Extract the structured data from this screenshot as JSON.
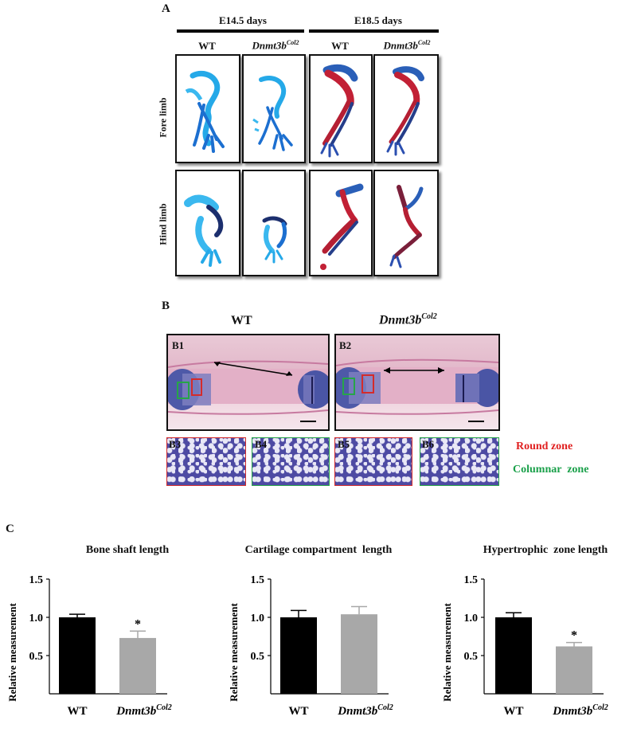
{
  "panel_a": {
    "label": "A",
    "groups": [
      {
        "title": "E14.5 days"
      },
      {
        "title": "E18.5 days"
      }
    ],
    "columns": [
      {
        "base": "WT",
        "sup": ""
      },
      {
        "base": "Dnmt3b",
        "sup": "Col2"
      },
      {
        "base": "WT",
        "sup": ""
      },
      {
        "base": "Dnmt3b",
        "sup": "Col2"
      }
    ],
    "rows": [
      "Fore limb",
      "Hind limb"
    ]
  },
  "panel_b": {
    "label": "B",
    "wt_title": "WT",
    "mut_title": {
      "base": "Dnmt3b",
      "sup": "Col2"
    },
    "main_labels": [
      "B1",
      "B2"
    ],
    "thumb_labels": [
      "B3",
      "B4",
      "B5",
      "B6"
    ],
    "legend": [
      {
        "text": "Round zone",
        "color": "#e02020"
      },
      {
        "text": "Columnar  zone",
        "color": "#1aa04a"
      }
    ],
    "colors": {
      "round": "#d42b2b",
      "columnar": "#27a548"
    }
  },
  "panel_c": {
    "label": "C"
  },
  "chart_data": [
    {
      "type": "bar",
      "title": "Bone shaft length",
      "ylabel": "Relative measurement",
      "ylim": [
        0,
        1.5
      ],
      "yticks": [
        "0.5",
        "1.0",
        "1.5"
      ],
      "categories": [
        "WT",
        "Dnmt3b^Col2"
      ],
      "category_parts": [
        {
          "base": "WT",
          "sup": ""
        },
        {
          "base": "Dnmt3b",
          "sup": "Col2"
        }
      ],
      "values": [
        1.0,
        0.73
      ],
      "errors": [
        0.04,
        0.09
      ],
      "significance": [
        "",
        "*"
      ],
      "colors": [
        "#000000",
        "#a8a8a8"
      ]
    },
    {
      "type": "bar",
      "title": "Cartilage compartment  length",
      "ylabel": "Relative measurement",
      "ylim": [
        0,
        1.5
      ],
      "yticks": [
        "0.5",
        "1.0",
        "1.5"
      ],
      "categories": [
        "WT",
        "Dnmt3b^Col2"
      ],
      "category_parts": [
        {
          "base": "WT",
          "sup": ""
        },
        {
          "base": "Dnmt3b",
          "sup": "Col2"
        }
      ],
      "values": [
        1.0,
        1.04
      ],
      "errors": [
        0.09,
        0.1
      ],
      "significance": [
        "",
        ""
      ],
      "colors": [
        "#000000",
        "#a8a8a8"
      ]
    },
    {
      "type": "bar",
      "title": "Hypertrophic  zone length",
      "ylabel": "Relative measurement",
      "ylim": [
        0,
        1.5
      ],
      "yticks": [
        "0.5",
        "1.0",
        "1.5"
      ],
      "categories": [
        "WT",
        "Dnmt3b^Col2"
      ],
      "category_parts": [
        {
          "base": "WT",
          "sup": ""
        },
        {
          "base": "Dnmt3b",
          "sup": "Col2"
        }
      ],
      "values": [
        1.0,
        0.62
      ],
      "errors": [
        0.06,
        0.05
      ],
      "significance": [
        "",
        "*"
      ],
      "colors": [
        "#000000",
        "#a8a8a8"
      ]
    }
  ]
}
